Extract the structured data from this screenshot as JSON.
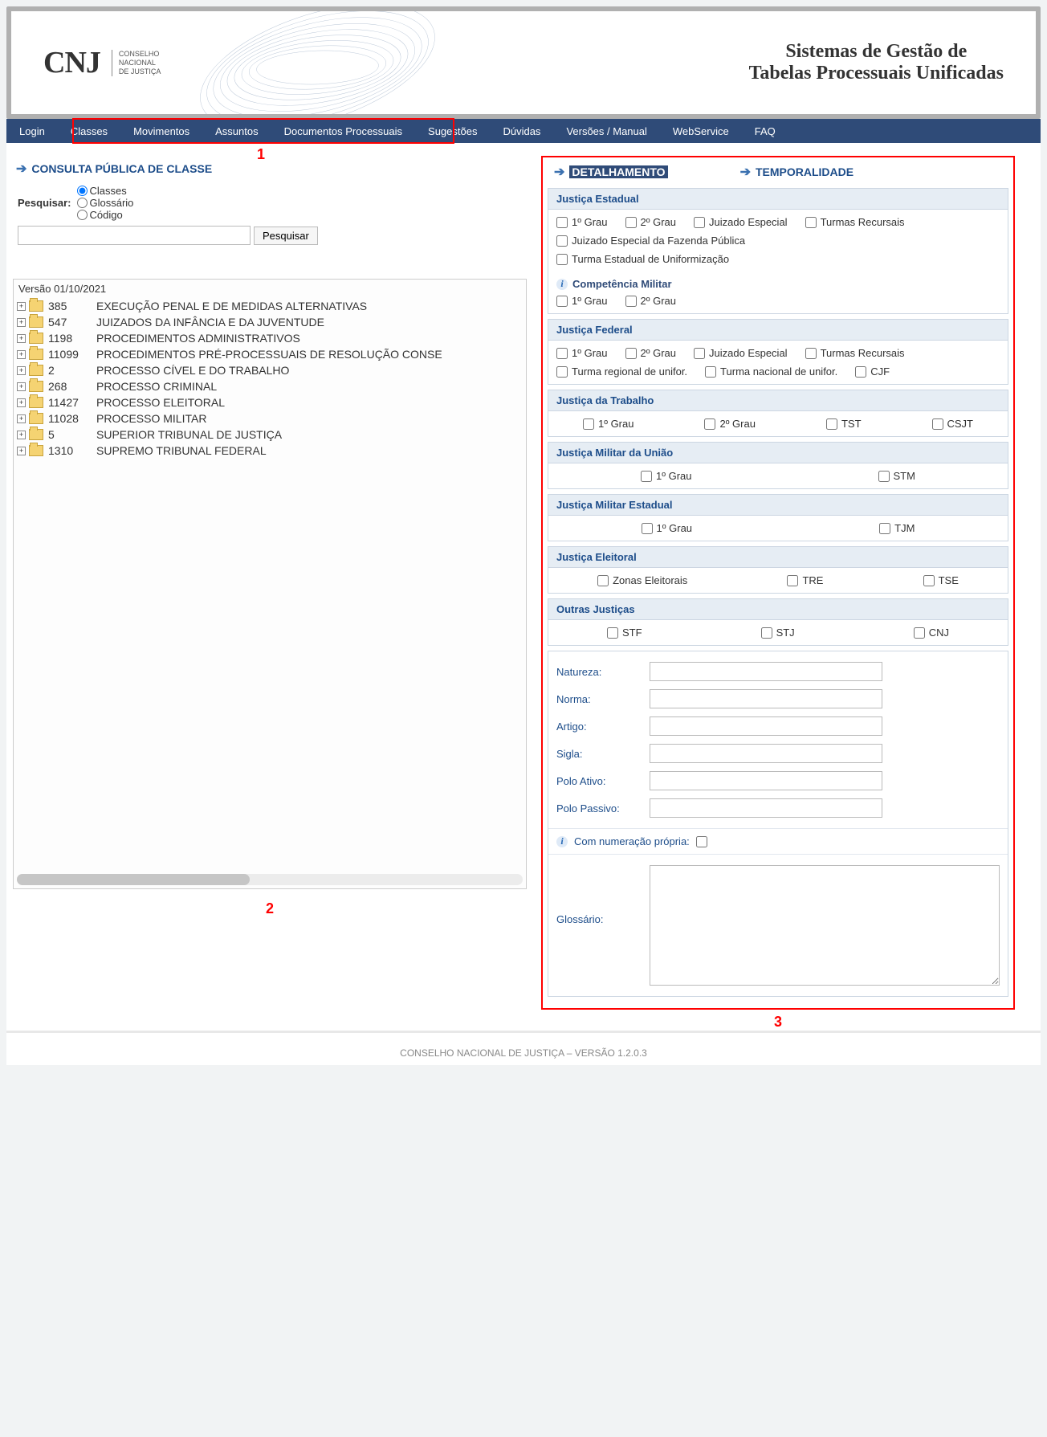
{
  "banner": {
    "logo_main": "CNJ",
    "logo_sub_l1": "CONSELHO",
    "logo_sub_l2": "NACIONAL",
    "logo_sub_l3": "DE JUSTIÇA",
    "title_l1": "Sistemas de Gestão de",
    "title_l2": "Tabelas Processuais Unificadas",
    "swirl_color": "#4a6b95"
  },
  "nav": {
    "items": [
      {
        "key": "login",
        "label": "Login"
      },
      {
        "key": "classes",
        "label": "Classes"
      },
      {
        "key": "movimentos",
        "label": "Movimentos"
      },
      {
        "key": "assuntos",
        "label": "Assuntos"
      },
      {
        "key": "documentos",
        "label": "Documentos Processuais"
      },
      {
        "key": "sugestoes",
        "label": "Sugestões"
      },
      {
        "key": "duvidas",
        "label": "Dúvidas"
      },
      {
        "key": "versoes",
        "label": "Versões / Manual"
      },
      {
        "key": "webservice",
        "label": "WebService"
      },
      {
        "key": "faq",
        "label": "FAQ"
      }
    ],
    "bg": "#2f4b78"
  },
  "annotations": {
    "one": "1",
    "two": "2",
    "three": "3",
    "color": "#ff0000"
  },
  "left": {
    "header": "CONSULTA PÚBLICA DE CLASSE",
    "search_label": "Pesquisar:",
    "radio_options": [
      {
        "key": "classes",
        "label": "Classes",
        "checked": true
      },
      {
        "key": "glossario",
        "label": "Glossário",
        "checked": false
      },
      {
        "key": "codigo",
        "label": "Código",
        "checked": false
      }
    ],
    "search_button": "Pesquisar",
    "tree_version": "Versão 01/10/2021",
    "tree_items": [
      {
        "code": "385",
        "label": "EXECUÇÃO PENAL E DE MEDIDAS ALTERNATIVAS"
      },
      {
        "code": "547",
        "label": "JUIZADOS DA INFÂNCIA E DA JUVENTUDE"
      },
      {
        "code": "1198",
        "label": "PROCEDIMENTOS ADMINISTRATIVOS"
      },
      {
        "code": "11099",
        "label": "PROCEDIMENTOS PRÉ-PROCESSUAIS DE RESOLUÇÃO CONSE"
      },
      {
        "code": "2",
        "label": "PROCESSO CÍVEL E DO TRABALHO"
      },
      {
        "code": "268",
        "label": "PROCESSO CRIMINAL"
      },
      {
        "code": "11427",
        "label": "PROCESSO ELEITORAL"
      },
      {
        "code": "11028",
        "label": "PROCESSO MILITAR"
      },
      {
        "code": "5",
        "label": "SUPERIOR TRIBUNAL DE JUSTIÇA"
      },
      {
        "code": "1310",
        "label": "SUPREMO TRIBUNAL FEDERAL"
      }
    ]
  },
  "right": {
    "tab_detalhamento": "DETALHAMENTO",
    "tab_temporalidade": "TEMPORALIDADE",
    "sections": {
      "justica_estadual": {
        "title": "Justiça Estadual",
        "row1": [
          "1º Grau",
          "2º Grau",
          "Juizado Especial",
          "Turmas Recursais"
        ],
        "row2": [
          "Juizado Especial da Fazenda Pública"
        ],
        "row3": [
          "Turma Estadual de Uniformização"
        ],
        "comp_mil_label": "Competência Militar",
        "comp_mil_opts": [
          "1º Grau",
          "2º Grau"
        ]
      },
      "justica_federal": {
        "title": "Justiça Federal",
        "row1": [
          "1º Grau",
          "2º Grau",
          "Juizado Especial",
          "Turmas Recursais"
        ],
        "row2": [
          "Turma regional de unifor.",
          "Turma nacional de unifor.",
          "CJF"
        ]
      },
      "justica_trabalho": {
        "title": "Justiça da Trabalho",
        "opts": [
          "1º Grau",
          "2º Grau",
          "TST",
          "CSJT"
        ]
      },
      "militar_uniao": {
        "title": "Justiça Militar da União",
        "opts": [
          "1º Grau",
          "STM"
        ]
      },
      "militar_estadual": {
        "title": "Justiça Militar Estadual",
        "opts": [
          "1º Grau",
          "TJM"
        ]
      },
      "eleitoral": {
        "title": "Justiça Eleitoral",
        "opts": [
          "Zonas Eleitorais",
          "TRE",
          "TSE"
        ]
      },
      "outras": {
        "title": "Outras Justiças",
        "opts": [
          "STF",
          "STJ",
          "CNJ"
        ]
      }
    },
    "form": {
      "natureza": "Natureza:",
      "norma": "Norma:",
      "artigo": "Artigo:",
      "sigla": "Sigla:",
      "polo_ativo": "Polo Ativo:",
      "polo_passivo": "Polo Passivo:",
      "numeracao": "Com numeração própria:",
      "glossario": "Glossário:"
    }
  },
  "footer": "CONSELHO NACIONAL DE JUSTIÇA – VERSÃO 1.2.0.3",
  "colors": {
    "accent": "#1d4d8a",
    "panel_bg": "#e6edf4",
    "border": "#ccd6e2"
  }
}
